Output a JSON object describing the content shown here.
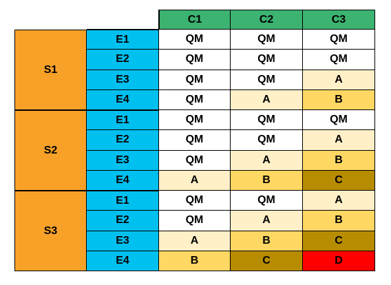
{
  "columns": [
    "C1",
    "C2",
    "C3"
  ],
  "groups": [
    {
      "label": "S1",
      "rows": [
        {
          "label": "E1",
          "values": [
            "QM",
            "QM",
            "QM"
          ]
        },
        {
          "label": "E2",
          "values": [
            "QM",
            "QM",
            "QM"
          ]
        },
        {
          "label": "E3",
          "values": [
            "QM",
            "QM",
            "A"
          ]
        },
        {
          "label": "E4",
          "values": [
            "QM",
            "A",
            "B"
          ]
        }
      ]
    },
    {
      "label": "S2",
      "rows": [
        {
          "label": "E1",
          "values": [
            "QM",
            "QM",
            "QM"
          ]
        },
        {
          "label": "E2",
          "values": [
            "QM",
            "QM",
            "A"
          ]
        },
        {
          "label": "E3",
          "values": [
            "QM",
            "A",
            "B"
          ]
        },
        {
          "label": "E4",
          "values": [
            "A",
            "B",
            "C"
          ]
        }
      ]
    },
    {
      "label": "S3",
      "rows": [
        {
          "label": "E1",
          "values": [
            "QM",
            "QM",
            "A"
          ]
        },
        {
          "label": "E2",
          "values": [
            "QM",
            "A",
            "B"
          ]
        },
        {
          "label": "E3",
          "values": [
            "A",
            "B",
            "C"
          ]
        },
        {
          "label": "E4",
          "values": [
            "B",
            "C",
            "D"
          ]
        }
      ]
    }
  ],
  "colors": {
    "header": "#3cb371",
    "group": "#f7a128",
    "row_label": "#00c0f0",
    "QM": "#ffffff",
    "A": "#fff0c8",
    "B": "#ffd763",
    "C": "#b88c00",
    "D": "#ff0000"
  }
}
